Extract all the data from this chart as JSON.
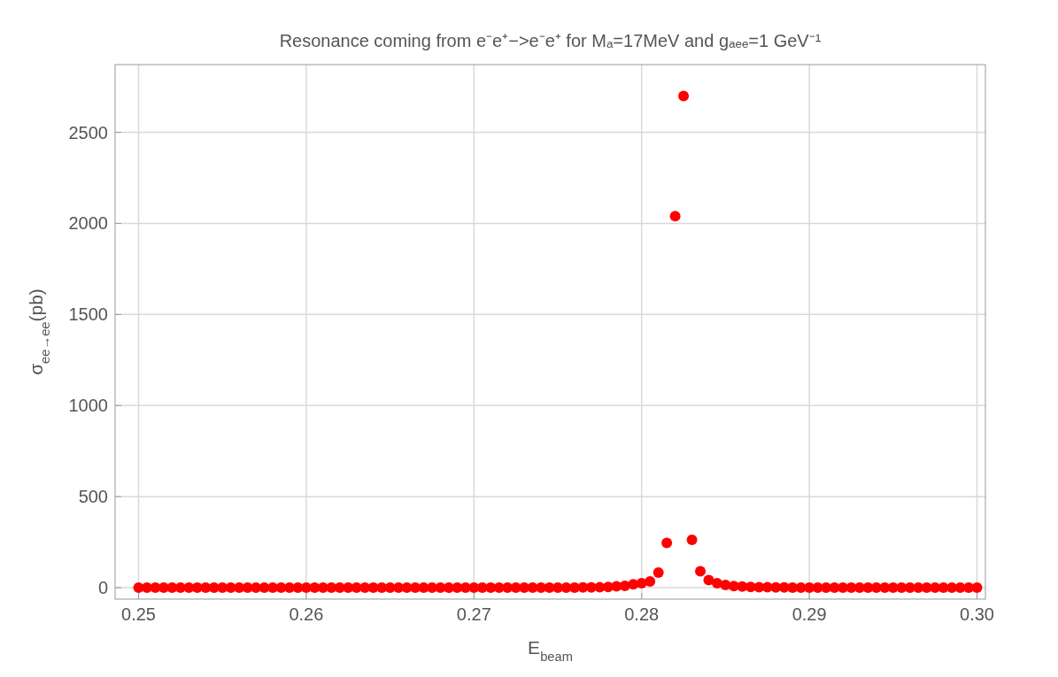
{
  "chart_data": {
    "type": "scatter",
    "title": "Resonance coming from e⁻e⁺−>e⁻e⁺ for Mₐ=17MeV and gₐₑₑ=1 GeV⁻¹",
    "xlabel": "E$_{beam}$",
    "ylabel": "σ$_{ee→ee}$(pb)",
    "x": [
      0.25,
      0.2505,
      0.251,
      0.2515,
      0.252,
      0.2525,
      0.253,
      0.2535,
      0.254,
      0.2545,
      0.255,
      0.2555,
      0.256,
      0.2565,
      0.257,
      0.2575,
      0.258,
      0.2585,
      0.259,
      0.2595,
      0.26,
      0.2605,
      0.261,
      0.2615,
      0.262,
      0.2625,
      0.263,
      0.2635,
      0.264,
      0.2645,
      0.265,
      0.2655,
      0.266,
      0.2665,
      0.267,
      0.2675,
      0.268,
      0.2685,
      0.269,
      0.2695,
      0.27,
      0.2705,
      0.271,
      0.2715,
      0.272,
      0.2725,
      0.273,
      0.2735,
      0.274,
      0.2745,
      0.275,
      0.2755,
      0.276,
      0.2765,
      0.277,
      0.2775,
      0.278,
      0.2785,
      0.279,
      0.2795,
      0.28,
      0.2805,
      0.281,
      0.2815,
      0.282,
      0.2825,
      0.283,
      0.2835,
      0.284,
      0.2845,
      0.285,
      0.2855,
      0.286,
      0.2865,
      0.287,
      0.2875,
      0.288,
      0.2885,
      0.289,
      0.2895,
      0.29,
      0.2905,
      0.291,
      0.2915,
      0.292,
      0.2925,
      0.293,
      0.2935,
      0.294,
      0.2945,
      0.295,
      0.2955,
      0.296,
      0.2965,
      0.297,
      0.2975,
      0.298,
      0.2985,
      0.299,
      0.2995,
      0.3
    ],
    "series": [
      {
        "color": "#ff0000",
        "values": [
          0,
          0,
          0,
          0,
          0,
          0,
          0,
          0,
          0,
          0,
          0,
          0,
          0,
          0,
          0,
          0,
          0,
          0,
          0,
          0,
          0,
          0,
          0,
          0,
          0,
          0,
          0,
          0,
          0,
          0,
          0,
          0,
          0,
          0,
          0,
          0,
          0,
          0,
          0,
          0,
          0,
          0,
          0,
          0,
          0,
          0,
          0,
          0,
          0,
          0,
          0,
          0,
          0,
          1,
          1,
          2,
          4,
          8,
          10,
          18,
          24,
          34,
          83,
          245,
          2040,
          2700,
          262,
          90,
          42,
          25,
          15,
          9,
          6,
          4,
          3,
          2,
          1,
          1,
          0,
          0,
          0,
          0,
          0,
          0,
          0,
          0,
          0,
          0,
          0,
          0,
          0,
          0,
          0,
          0,
          0,
          0,
          0,
          0,
          0,
          0,
          0
        ]
      }
    ],
    "xlim": [
      0.2486,
      0.3005
    ],
    "ylim": [
      -63,
      2872
    ],
    "xticks": [
      {
        "value": 0.25,
        "label": "0.25"
      },
      {
        "value": 0.26,
        "label": "0.26"
      },
      {
        "value": 0.27,
        "label": "0.27"
      },
      {
        "value": 0.28,
        "label": "0.28"
      },
      {
        "value": 0.29,
        "label": "0.29"
      },
      {
        "value": 0.3,
        "label": "0.30"
      }
    ],
    "yticks": [
      0,
      500,
      1000,
      1500,
      2000,
      2500
    ],
    "grid": true,
    "marker": "circle"
  }
}
